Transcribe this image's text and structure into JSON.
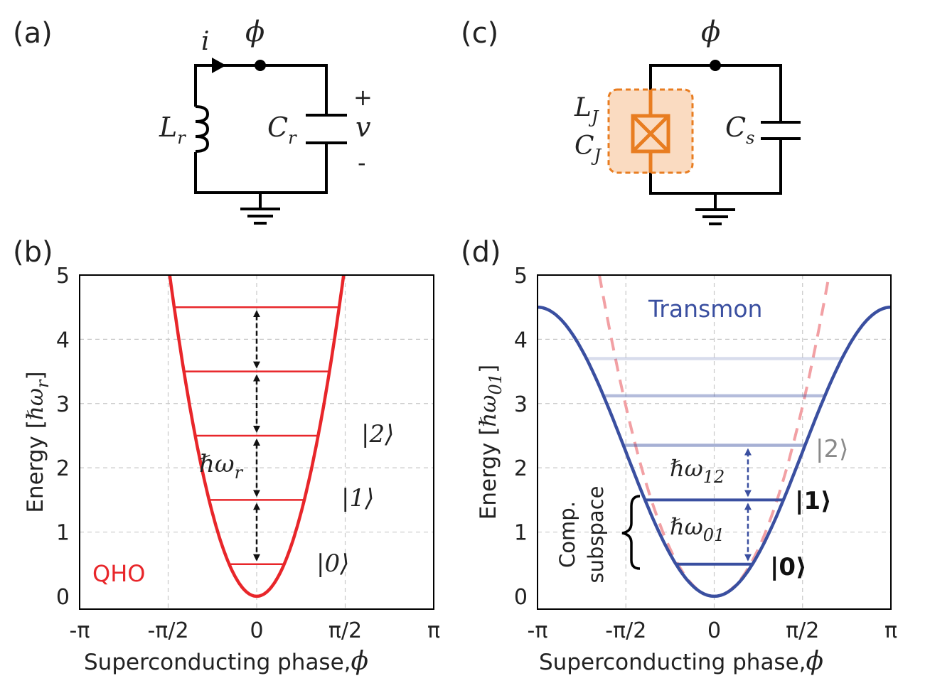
{
  "figure": {
    "a": {
      "label": "(a)",
      "node": "ϕ",
      "current": "i",
      "inductor": {
        "main": "L",
        "sub": "r"
      },
      "capacitor": {
        "main": "C",
        "sub": "r"
      },
      "voltage": "v",
      "plus": "+",
      "minus": "-"
    },
    "c": {
      "label": "(c)",
      "node": "ϕ",
      "junction_inductance": {
        "main": "L",
        "sub": "J"
      },
      "junction_capacitance": {
        "main": "C",
        "sub": "J"
      },
      "shunt": {
        "main": "C",
        "sub": "s"
      },
      "colors": {
        "junction": "#e87d21",
        "junction_fill": "#fadbc1"
      }
    },
    "b": {
      "label": "(b)",
      "ylabel_text": "Energy [",
      "ylabel_sym": "ℏω",
      "ylabel_sub": "r",
      "ylabel_end": "]",
      "xlabel_text": "Superconducting phase,",
      "xlabel_sym": "ϕ",
      "series_label": "QHO",
      "spacing_label_sym": "ℏω",
      "spacing_label_sub": "r",
      "state_labels": [
        "|0⟩",
        "|1⟩",
        "|2⟩"
      ],
      "color": "#e8262a"
    },
    "d": {
      "label": "(d)",
      "ylabel_text": "Energy [",
      "ylabel_sym": "ℏω",
      "ylabel_sub": "01",
      "ylabel_end": "]",
      "xlabel_text": "Superconducting phase,",
      "xlabel_sym": "ϕ",
      "series_label": "Transmon",
      "state_labels": [
        "|0⟩",
        "|1⟩",
        "|2⟩"
      ],
      "transition_01_sym": "ℏω",
      "transition_01_sub": "01",
      "transition_12_sym": "ℏω",
      "transition_12_sub": "12",
      "subspace_label": [
        "Comp.",
        "subspace"
      ],
      "color": "#3a4fa0",
      "ghost_color": "#f2a0a4"
    }
  },
  "chart_data": [
    {
      "panel": "b",
      "type": "line",
      "x_ticks": [
        "-π",
        "-π/2",
        "0",
        "π/2",
        "π"
      ],
      "y_ticks": [
        "0",
        "1",
        "2",
        "3",
        "4",
        "5"
      ],
      "xlim": [
        -3.1416,
        3.1416
      ],
      "ylim": [
        -0.2,
        5
      ],
      "grid": true,
      "series": [
        {
          "name": "QHO",
          "curve": "E = 2.1·ϕ²"
        }
      ],
      "levels": [
        0.5,
        1.5,
        2.5,
        3.5,
        4.5
      ],
      "level_width": 0.5,
      "spacing_arrows": [
        [
          0.5,
          1.5
        ],
        [
          1.5,
          2.5
        ],
        [
          2.5,
          3.5
        ],
        [
          3.5,
          4.5
        ]
      ]
    },
    {
      "panel": "d",
      "type": "line",
      "x_ticks": [
        "-π",
        "-π/2",
        "0",
        "π/2",
        "π"
      ],
      "y_ticks": [
        "0",
        "1",
        "2",
        "3",
        "4",
        "5"
      ],
      "xlim": [
        -3.1416,
        3.1416
      ],
      "ylim": [
        -0.2,
        5
      ],
      "grid": true,
      "series": [
        {
          "name": "Transmon",
          "curve": "E = 2.25·(1 − cos ϕ)"
        }
      ],
      "harmonic_reference": "E = 1.2·ϕ²",
      "levels": [
        0.5,
        1.5,
        2.35,
        3.12,
        3.7
      ],
      "level_opacity": [
        1,
        1,
        0.45,
        0.38,
        0.2
      ],
      "transition_arrows": [
        [
          0.5,
          1.5
        ],
        [
          1.5,
          2.35
        ]
      ]
    }
  ]
}
